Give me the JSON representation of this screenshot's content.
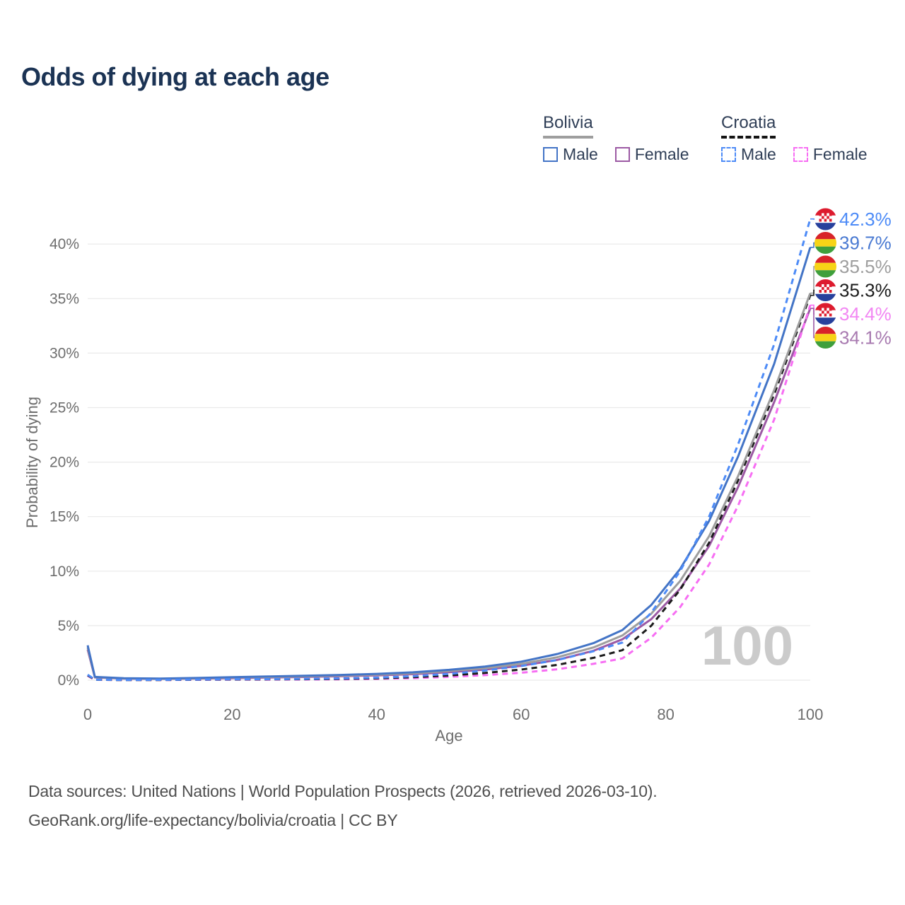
{
  "title": "Odds of dying at each age",
  "legend": {
    "groups": [
      {
        "label": "Bolivia",
        "style": "solid",
        "underline_color": "#9e9e9e"
      },
      {
        "label": "Croatia",
        "style": "dashed",
        "underline_color": "#141414"
      }
    ],
    "items": [
      {
        "group": "Bolivia",
        "label": "Male",
        "color": "#4374c6",
        "dash": false
      },
      {
        "group": "Bolivia",
        "label": "Female",
        "color": "#9c5aa4",
        "dash": false
      },
      {
        "group": "Croatia",
        "label": "Male",
        "color": "#4d8bf7",
        "dash": true
      },
      {
        "group": "Croatia",
        "label": "Female",
        "color": "#f76ef3",
        "dash": true
      }
    ]
  },
  "chart_data": {
    "type": "line",
    "title": "Odds of dying at each age",
    "xlabel": "Age",
    "ylabel": "Probability of dying",
    "xlim": [
      0,
      100
    ],
    "ylim": [
      0,
      40
    ],
    "grid": "horizontal",
    "legend_position": "top-right",
    "xticks": [
      0,
      20,
      40,
      60,
      80,
      100
    ],
    "xtick_labels": [
      "0",
      "20",
      "40",
      "60",
      "80",
      "100"
    ],
    "yticks": [
      0,
      5,
      10,
      15,
      20,
      25,
      30,
      35,
      40
    ],
    "ytick_labels": [
      "0%",
      "5%",
      "10%",
      "15%",
      "20%",
      "25%",
      "30%",
      "35%",
      "40%"
    ],
    "x": [
      0,
      1,
      5,
      10,
      15,
      20,
      25,
      30,
      35,
      40,
      45,
      50,
      55,
      60,
      65,
      70,
      74,
      78,
      82,
      86,
      90,
      95,
      100
    ],
    "series": [
      {
        "id": "croatia-male",
        "name": "Croatia Male",
        "country": "croatia",
        "sex": "Male",
        "color": "#4d8bf7",
        "label_color": "#4d8bf7",
        "dash": true,
        "end_label": "42.3%",
        "values": [
          0.5,
          0.05,
          0.02,
          0.03,
          0.06,
          0.09,
          0.1,
          0.12,
          0.16,
          0.23,
          0.36,
          0.57,
          0.88,
          1.3,
          1.85,
          2.65,
          3.45,
          6.2,
          10.0,
          15.0,
          21.6,
          30.8,
          42.3
        ]
      },
      {
        "id": "bolivia-male",
        "name": "Bolivia Male",
        "country": "bolivia",
        "sex": "Male",
        "color": "#4374c6",
        "label_color": "#4a7ad2",
        "dash": false,
        "end_label": "39.7%",
        "values": [
          3.2,
          0.3,
          0.18,
          0.15,
          0.2,
          0.28,
          0.34,
          0.4,
          0.48,
          0.58,
          0.72,
          0.95,
          1.25,
          1.7,
          2.4,
          3.4,
          4.6,
          6.9,
          10.2,
          14.6,
          20.5,
          29.0,
          39.7
        ]
      },
      {
        "id": "bolivia-both",
        "name": "Bolivia Both sexes",
        "country": "bolivia",
        "sex": "Both",
        "color": "#9e9e9e",
        "label_color": "#9e9e9e",
        "dash": false,
        "end_label": "35.5%",
        "values": [
          3.0,
          0.27,
          0.16,
          0.13,
          0.17,
          0.24,
          0.29,
          0.35,
          0.42,
          0.5,
          0.63,
          0.84,
          1.1,
          1.5,
          2.1,
          3.0,
          4.1,
          6.1,
          9.1,
          13.2,
          18.7,
          26.6,
          35.5
        ]
      },
      {
        "id": "croatia-both",
        "name": "Croatia Both sexes",
        "country": "croatia",
        "sex": "Both",
        "color": "#1c1c1c",
        "label_color": "#1c1c1c",
        "dash": true,
        "end_label": "35.3%",
        "values": [
          0.45,
          0.04,
          0.015,
          0.02,
          0.045,
          0.065,
          0.075,
          0.09,
          0.12,
          0.17,
          0.27,
          0.43,
          0.66,
          0.97,
          1.4,
          2.05,
          2.75,
          5.0,
          8.3,
          12.6,
          18.3,
          26.2,
          35.3
        ]
      },
      {
        "id": "croatia-female",
        "name": "Croatia Female",
        "country": "croatia",
        "sex": "Female",
        "color": "#f76ef3",
        "label_color": "#f287f3",
        "dash": true,
        "end_label": "34.4%",
        "values": [
          0.4,
          0.035,
          0.01,
          0.015,
          0.03,
          0.045,
          0.05,
          0.06,
          0.08,
          0.12,
          0.18,
          0.3,
          0.46,
          0.68,
          1.0,
          1.5,
          2.0,
          3.9,
          6.7,
          10.6,
          16.0,
          23.9,
          34.4
        ]
      },
      {
        "id": "bolivia-female",
        "name": "Bolivia Female",
        "country": "bolivia",
        "sex": "Female",
        "color": "#9c5aa4",
        "label_color": "#a87ab0",
        "dash": false,
        "end_label": "34.1%",
        "values": [
          2.8,
          0.25,
          0.14,
          0.12,
          0.15,
          0.19,
          0.24,
          0.29,
          0.36,
          0.44,
          0.55,
          0.73,
          0.97,
          1.32,
          1.86,
          2.7,
          3.75,
          5.6,
          8.4,
          12.3,
          17.7,
          25.5,
          34.1
        ]
      }
    ],
    "flag_colors": {
      "bolivia": {
        "top": "#d8232a",
        "middle": "#f7d417",
        "bottom": "#3f9f3c"
      },
      "croatia": {
        "top": "#dd1b2e",
        "middle": "#ffffff",
        "bottom": "#27409c",
        "checker": "#dd1b2e"
      }
    }
  },
  "watermark": "100",
  "footer": {
    "line1": "Data sources: United Nations | World Population Prospects (2026, retrieved 2026-03-10).",
    "line2": "GeoRank.org/life-expectancy/bolivia/croatia | CC BY"
  }
}
